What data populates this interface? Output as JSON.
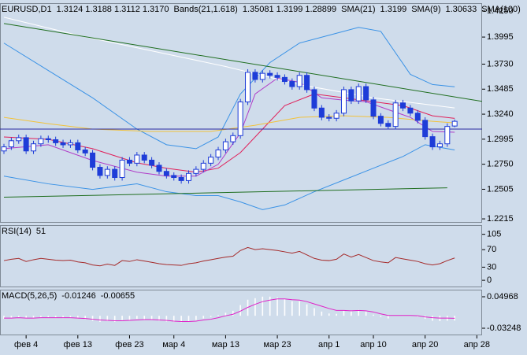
{
  "chart_data": [
    {
      "type": "candlestick",
      "header": [
        {
          "text": "EURUSD,D1",
          "color": "#000000"
        },
        {
          "text": "1.3124 1.3188 1.3112 1.3170",
          "color": "#1a1a80"
        },
        {
          "text": "Bands(21,1.618)",
          "color": "#000000"
        },
        {
          "text": "1.35081 1.3199 1.28899",
          "color": "#1e6fd0"
        },
        {
          "text": "SMA(21)",
          "color": "#000000"
        },
        {
          "text": "1.3199",
          "color": "#d0204a"
        },
        {
          "text": "SMA(9)",
          "color": "#000000"
        },
        {
          "text": "1.30633",
          "color": "#9a2fb0"
        },
        {
          "text": "SMA(100)",
          "color": "#000000"
        }
      ],
      "categories": [
        null,
        null,
        null,
        "фев 4",
        null,
        null,
        null,
        null,
        null,
        null,
        "фев 13",
        null,
        null,
        null,
        null,
        null,
        null,
        "фев 23",
        null,
        null,
        null,
        null,
        null,
        "мар 4",
        null,
        null,
        null,
        null,
        null,
        null,
        "мар 13",
        null,
        null,
        null,
        null,
        null,
        null,
        "мар 23",
        null,
        null,
        null,
        null,
        null,
        null,
        "апр 1",
        null,
        null,
        null,
        null,
        null,
        "апр 10",
        null,
        null,
        null,
        null,
        null,
        null,
        "апр 20",
        null,
        null,
        null,
        null,
        null,
        null,
        "апр 28"
      ],
      "open": [
        1.288,
        1.292,
        1.298,
        1.301,
        1.288,
        1.295,
        1.3,
        1.299,
        1.296,
        1.294,
        1.296,
        1.289,
        1.286,
        1.272,
        1.264,
        1.27,
        1.262,
        1.279,
        1.276,
        1.284,
        1.279,
        1.274,
        1.268,
        1.264,
        1.262,
        1.259,
        1.266,
        1.27,
        1.276,
        1.282,
        1.289,
        1.297,
        1.303,
        1.336,
        1.365,
        1.358,
        1.364,
        1.362,
        1.36,
        1.356,
        1.351,
        1.362,
        1.348,
        1.33,
        1.321,
        1.32,
        1.325,
        1.348,
        1.337,
        1.351,
        1.338,
        1.322,
        1.315,
        1.312,
        1.335,
        1.33,
        1.325,
        1.318,
        1.302,
        1.292,
        1.295,
        1.3124,
        null,
        null,
        null
      ],
      "high": [
        1.295,
        1.301,
        1.304,
        1.304,
        1.298,
        1.303,
        1.303,
        1.302,
        1.299,
        1.299,
        1.299,
        1.292,
        1.289,
        1.275,
        1.273,
        1.273,
        1.282,
        1.282,
        1.287,
        1.287,
        1.282,
        1.277,
        1.271,
        1.267,
        1.265,
        1.269,
        1.273,
        1.279,
        1.285,
        1.292,
        1.3,
        1.306,
        1.339,
        1.368,
        1.368,
        1.367,
        1.367,
        1.365,
        1.363,
        1.359,
        1.365,
        1.365,
        1.351,
        1.333,
        1.324,
        1.328,
        1.351,
        1.351,
        1.354,
        1.354,
        1.341,
        1.325,
        1.318,
        1.338,
        1.338,
        1.333,
        1.328,
        1.321,
        1.305,
        1.298,
        1.315,
        1.3188,
        null,
        null,
        null
      ],
      "low": [
        1.285,
        1.289,
        1.295,
        1.285,
        1.285,
        1.292,
        1.296,
        1.293,
        1.291,
        1.291,
        1.286,
        1.283,
        1.269,
        1.261,
        1.261,
        1.259,
        1.259,
        1.273,
        1.273,
        1.276,
        1.271,
        1.265,
        1.261,
        1.259,
        1.256,
        1.256,
        1.263,
        1.267,
        1.273,
        1.279,
        1.286,
        1.294,
        1.3,
        1.333,
        1.355,
        1.355,
        1.359,
        1.357,
        1.353,
        1.348,
        1.348,
        1.345,
        1.327,
        1.318,
        1.317,
        1.317,
        1.322,
        1.334,
        1.334,
        1.335,
        1.319,
        1.312,
        1.309,
        1.309,
        1.327,
        1.322,
        1.315,
        1.299,
        1.289,
        1.289,
        1.292,
        1.3112,
        null,
        null,
        null
      ],
      "close": [
        1.292,
        1.298,
        1.301,
        1.288,
        1.295,
        1.3,
        1.299,
        1.296,
        1.294,
        1.296,
        1.289,
        1.286,
        1.272,
        1.264,
        1.27,
        1.262,
        1.279,
        1.276,
        1.284,
        1.279,
        1.274,
        1.268,
        1.264,
        1.262,
        1.259,
        1.266,
        1.27,
        1.276,
        1.282,
        1.289,
        1.297,
        1.303,
        1.336,
        1.365,
        1.358,
        1.364,
        1.362,
        1.36,
        1.356,
        1.351,
        1.362,
        1.348,
        1.33,
        1.321,
        1.32,
        1.325,
        1.348,
        1.337,
        1.351,
        1.338,
        1.322,
        1.315,
        1.312,
        1.335,
        1.33,
        1.325,
        1.318,
        1.302,
        1.292,
        1.295,
        1.312,
        1.317,
        null,
        null,
        null
      ],
      "up_color": "#ffffff",
      "down_color": "#1e3cd8",
      "edge_color": "#1e3cd8",
      "lines": [
        {
          "color": "#3a92e6",
          "x": [
            0,
            6,
            12,
            18,
            22,
            26,
            29,
            32,
            36,
            40,
            44,
            48,
            51,
            55,
            58,
            61
          ],
          "values": [
            1.3936,
            1.3668,
            1.34,
            1.3094,
            1.2941,
            1.2902,
            1.3017,
            1.3438,
            1.3745,
            1.3936,
            1.4013,
            1.409,
            1.4051,
            1.363,
            1.353,
            1.35081
          ]
        },
        {
          "color": "#3a92e6",
          "x": [
            0,
            6,
            12,
            18,
            22,
            26,
            29,
            32,
            35,
            38,
            42,
            46,
            50,
            54,
            57,
            61
          ],
          "values": [
            1.2634,
            1.2558,
            1.2504,
            1.2558,
            1.2481,
            1.2443,
            1.2443,
            1.2381,
            1.2305,
            1.2351,
            1.2481,
            1.2596,
            1.2711,
            1.2826,
            1.2941,
            1.28899
          ]
        },
        {
          "color": "#e0205a",
          "x": [
            0,
            6,
            12,
            18,
            22,
            26,
            29,
            32,
            35,
            38,
            42,
            46,
            50,
            54,
            58,
            61
          ],
          "values": [
            1.3017,
            1.2994,
            1.2902,
            1.2764,
            1.2711,
            1.2672,
            1.2711,
            1.2864,
            1.3094,
            1.3324,
            1.3438,
            1.34,
            1.3362,
            1.3324,
            1.3224,
            1.3199
          ]
        },
        {
          "color": "#b03cc8",
          "x": [
            0,
            6,
            12,
            18,
            22,
            26,
            29,
            32,
            34,
            37,
            40,
            43,
            46,
            49,
            52,
            55,
            58,
            61
          ],
          "values": [
            1.2902,
            1.2941,
            1.2787,
            1.2672,
            1.2634,
            1.2634,
            1.2749,
            1.3055,
            1.3438,
            1.3592,
            1.3553,
            1.34,
            1.3377,
            1.3362,
            1.3285,
            1.3209,
            1.3071,
            1.30633
          ]
        },
        {
          "color": "#f2c23a",
          "x": [
            0,
            6,
            12,
            20,
            28,
            34,
            40,
            46,
            52,
            58,
            61
          ],
          "values": [
            1.3209,
            1.3147,
            1.3094,
            1.3071,
            1.3071,
            1.3132,
            1.3209,
            1.3224,
            1.3209,
            1.317,
            1.3155
          ]
        },
        {
          "color": "#ffffff",
          "x": [
            0,
            10,
            20,
            30,
            40,
            50,
            61
          ],
          "values": [
            1.4189,
            1.4013,
            1.386,
            1.3707,
            1.353,
            1.34,
            1.3301
          ]
        }
      ],
      "trendlines": [
        {
          "color": "#1f6e1f",
          "x": [
            0,
            65
          ],
          "values": [
            1.4128,
            1.3362
          ]
        },
        {
          "color": "#1f6e1f",
          "x": [
            0,
            60
          ],
          "values": [
            1.2427,
            1.2519
          ]
        }
      ],
      "hlines": [
        {
          "color": "#2a2aa0",
          "value": 1.3094
        }
      ],
      "ylim": [
        1.2177,
        1.4327
      ],
      "yticks": [
        {
          "value": 1.425,
          "label": "1.4250"
        },
        1.3995,
        {
          "value": 1.373,
          "label": "1.3730"
        },
        1.3485,
        {
          "value": 1.324,
          "label": "1.3240"
        },
        1.2995,
        {
          "value": 1.275,
          "label": "1.2750"
        },
        1.2505,
        1.2215
      ]
    },
    {
      "type": "line",
      "header": [
        {
          "text": "RSI(14)",
          "color": "#000000"
        },
        {
          "text": "51",
          "color": "#a52a2a"
        }
      ],
      "values": [
        45,
        48,
        50,
        43,
        47,
        50,
        48,
        46,
        45,
        46,
        42,
        40,
        35,
        33,
        37,
        34,
        45,
        43,
        47,
        44,
        41,
        38,
        36,
        35,
        34,
        38,
        40,
        44,
        47,
        50,
        53,
        55,
        68,
        75,
        70,
        72,
        70,
        68,
        65,
        62,
        66,
        58,
        50,
        46,
        45,
        48,
        60,
        53,
        59,
        52,
        45,
        42,
        40,
        52,
        49,
        46,
        43,
        38,
        35,
        38,
        45,
        51,
        null,
        null,
        null
      ],
      "color": "#a52a2a",
      "ylim": [
        -16,
        126
      ],
      "yticks": [
        105,
        70,
        30,
        0
      ]
    },
    {
      "type": "macd",
      "header": [
        {
          "text": "MACD(5,26,5)",
          "color": "#000000"
        },
        {
          "text": "-0.01246",
          "color": "#d020b0"
        },
        {
          "text": "-0.00655",
          "color": "#000000"
        }
      ],
      "values": [
        -0.008,
        -0.006,
        -0.004,
        -0.007,
        -0.006,
        -0.004,
        -0.004,
        -0.005,
        -0.006,
        -0.005,
        -0.007,
        -0.009,
        -0.013,
        -0.016,
        -0.014,
        -0.016,
        -0.011,
        -0.011,
        -0.008,
        -0.009,
        -0.011,
        -0.013,
        -0.015,
        -0.016,
        -0.017,
        -0.014,
        -0.011,
        -0.007,
        -0.003,
        0.002,
        0.008,
        0.013,
        0.028,
        0.042,
        0.046,
        0.05,
        0.05,
        0.048,
        0.044,
        0.038,
        0.038,
        0.03,
        0.02,
        0.011,
        0.006,
        0.005,
        0.013,
        0.012,
        0.016,
        0.011,
        0.003,
        -0.003,
        -0.007,
        0,
        0.001,
        0,
        -0.002,
        -0.008,
        -0.013,
        -0.014,
        -0.013,
        -0.01246,
        null,
        null,
        null
      ],
      "signal": [
        -0.006,
        -0.006,
        -0.005,
        -0.006,
        -0.006,
        -0.005,
        -0.005,
        -0.005,
        -0.005,
        -0.005,
        -0.006,
        -0.007,
        -0.009,
        -0.011,
        -0.012,
        -0.013,
        -0.013,
        -0.012,
        -0.011,
        -0.01,
        -0.01,
        -0.011,
        -0.012,
        -0.014,
        -0.015,
        -0.015,
        -0.014,
        -0.011,
        -0.009,
        -0.005,
        0,
        0.004,
        0.012,
        0.022,
        0.03,
        0.037,
        0.041,
        0.044,
        0.044,
        0.042,
        0.041,
        0.037,
        0.031,
        0.025,
        0.019,
        0.014,
        0.014,
        0.013,
        0.014,
        0.013,
        0.01,
        0.005,
        0.001,
        0.001,
        0.001,
        0.001,
        0,
        -0.003,
        -0.005,
        -0.006,
        -0.006,
        -0.00655,
        null,
        null,
        null
      ],
      "color": "#ffffff",
      "signal_color": "#e020c8",
      "ylim": [
        -0.051,
        0.0682
      ],
      "yticks": [
        0.04968,
        -0.03248
      ]
    }
  ]
}
